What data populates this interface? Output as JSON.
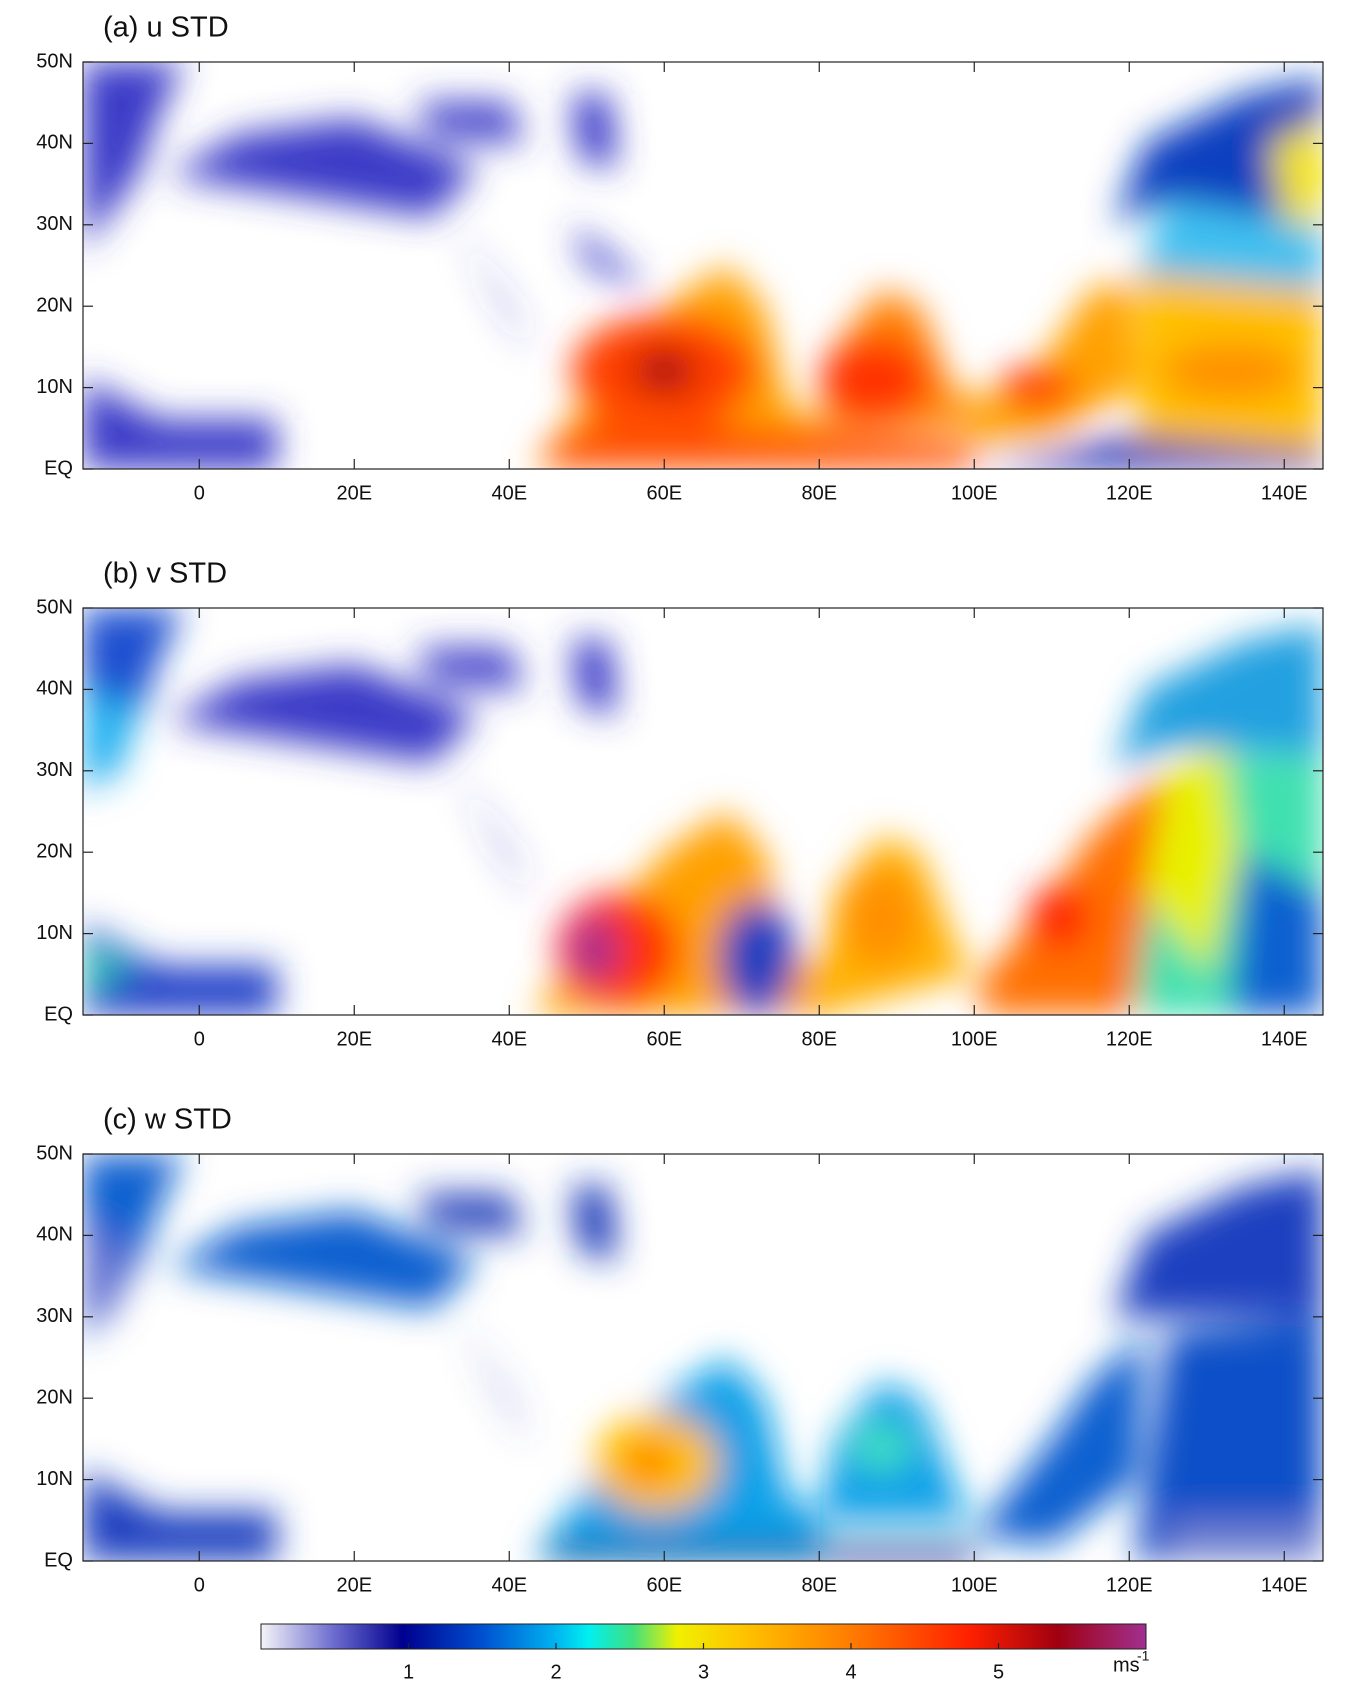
{
  "panels": [
    {
      "title": "(a) u STD",
      "xlim": [
        -15,
        145
      ],
      "ylim": [
        0,
        50
      ],
      "xticks": [
        0,
        {
          "value": 20,
          "label": "20E"
        },
        {
          "value": 40,
          "label": "40E"
        },
        {
          "value": 60,
          "label": "60E"
        },
        {
          "value": 80,
          "label": "80E"
        },
        {
          "value": 100,
          "label": "100E"
        },
        {
          "value": 120,
          "label": "120E"
        },
        {
          "value": 140,
          "label": "140E"
        }
      ],
      "yticks": [
        {
          "value": 0,
          "label": "EQ"
        },
        {
          "value": 10,
          "label": "10N"
        },
        {
          "value": 20,
          "label": "20N"
        },
        {
          "value": 30,
          "label": "30N"
        },
        {
          "value": 40,
          "label": "40N"
        },
        {
          "value": 50,
          "label": "50N"
        }
      ]
    },
    {
      "title": "(b) v STD",
      "xlim": [
        -15,
        145
      ],
      "ylim": [
        0,
        50
      ],
      "xticks": [
        0,
        {
          "value": 20,
          "label": "20E"
        },
        {
          "value": 40,
          "label": "40E"
        },
        {
          "value": 60,
          "label": "60E"
        },
        {
          "value": 80,
          "label": "80E"
        },
        {
          "value": 100,
          "label": "100E"
        },
        {
          "value": 120,
          "label": "120E"
        },
        {
          "value": 140,
          "label": "140E"
        }
      ],
      "yticks": [
        {
          "value": 0,
          "label": "EQ"
        },
        {
          "value": 10,
          "label": "10N"
        },
        {
          "value": 20,
          "label": "20N"
        },
        {
          "value": 30,
          "label": "30N"
        },
        {
          "value": 40,
          "label": "40N"
        },
        {
          "value": 50,
          "label": "50N"
        }
      ]
    },
    {
      "title": "(c) w STD",
      "xlim": [
        -15,
        145
      ],
      "ylim": [
        0,
        50
      ],
      "xticks": [
        0,
        {
          "value": 20,
          "label": "20E"
        },
        {
          "value": 40,
          "label": "40E"
        },
        {
          "value": 60,
          "label": "60E"
        },
        {
          "value": 80,
          "label": "80E"
        },
        {
          "value": 100,
          "label": "100E"
        },
        {
          "value": 120,
          "label": "120E"
        },
        {
          "value": 140,
          "label": "140E"
        }
      ],
      "yticks": [
        {
          "value": 0,
          "label": "EQ"
        },
        {
          "value": 10,
          "label": "10N"
        },
        {
          "value": 20,
          "label": "20N"
        },
        {
          "value": 30,
          "label": "30N"
        },
        {
          "value": 40,
          "label": "40N"
        },
        {
          "value": 50,
          "label": "50N"
        }
      ]
    }
  ],
  "colorbar": {
    "lim": [
      0,
      6
    ],
    "ticks": [
      1,
      2,
      3,
      4,
      5
    ],
    "unit": "ms",
    "unit_exponent": "-1"
  }
}
